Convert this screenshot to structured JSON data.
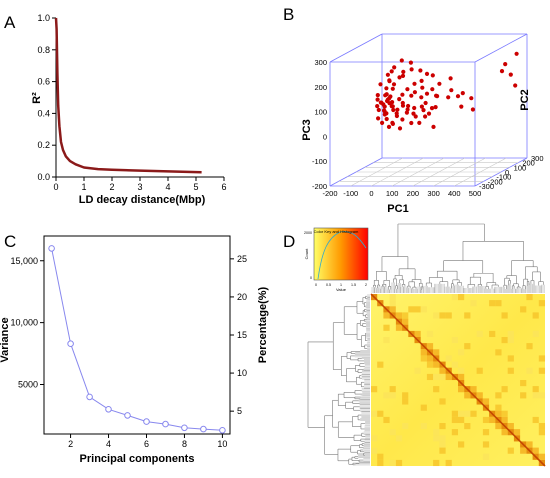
{
  "panels": {
    "a": "A",
    "b": "B",
    "c": "C",
    "d": "D"
  },
  "chart_data": [
    {
      "panel": "A",
      "type": "line",
      "xlabel": "LD decay distance(Mbp)",
      "ylabel": "R²",
      "xlim": [
        0,
        6
      ],
      "ylim": [
        0,
        1
      ],
      "xticks": [
        "0",
        "1",
        "2",
        "3",
        "4",
        "5",
        "6"
      ],
      "yticks": [
        "0.0",
        "0.2",
        "0.4",
        "0.6",
        "0.8",
        "1.0"
      ],
      "grid": false,
      "series": [
        {
          "color": "#8b1a1a",
          "x": [
            0.0,
            0.02,
            0.05,
            0.08,
            0.12,
            0.18,
            0.25,
            0.35,
            0.5,
            0.7,
            1.0,
            1.5,
            2.0,
            3.0,
            4.0,
            5.2
          ],
          "y": [
            1.0,
            0.93,
            0.65,
            0.45,
            0.32,
            0.22,
            0.17,
            0.13,
            0.1,
            0.08,
            0.06,
            0.05,
            0.045,
            0.04,
            0.035,
            0.03
          ]
        }
      ]
    },
    {
      "panel": "B",
      "type": "scatter",
      "xlabel": "PC1",
      "ylabel": "PC3",
      "zlabel": "PC2",
      "xlim": [
        -200,
        500
      ],
      "ylim": [
        -200,
        300
      ],
      "zlim": [
        -300,
        300
      ],
      "xticks": [
        "-200",
        "-100",
        "0",
        "100",
        "200",
        "300",
        "400",
        "500"
      ],
      "yticks": [
        "-200",
        "-100",
        "0",
        "100",
        "200",
        "300"
      ],
      "zticks": [
        "-300",
        "-200",
        "-100",
        "0",
        "100",
        "200",
        "300"
      ],
      "point_color": "#cc0000",
      "points": [
        [
          -80,
          80,
          0
        ],
        [
          -70,
          60,
          20
        ],
        [
          -60,
          50,
          -10
        ],
        [
          -75,
          40,
          30
        ],
        [
          -65,
          30,
          10
        ],
        [
          -85,
          20,
          -20
        ],
        [
          -55,
          70,
          40
        ],
        [
          -50,
          90,
          10
        ],
        [
          -90,
          50,
          0
        ],
        [
          -60,
          10,
          20
        ],
        [
          -70,
          0,
          -10
        ],
        [
          -40,
          60,
          30
        ],
        [
          -45,
          40,
          -20
        ],
        [
          -80,
          100,
          50
        ],
        [
          -30,
          80,
          10
        ],
        [
          -60,
          110,
          20
        ],
        [
          -20,
          50,
          0
        ],
        [
          -10,
          70,
          -30
        ],
        [
          0,
          90,
          20
        ],
        [
          10,
          60,
          40
        ],
        [
          20,
          110,
          10
        ],
        [
          -35,
          130,
          30
        ],
        [
          -25,
          150,
          20
        ],
        [
          -15,
          170,
          60
        ],
        [
          30,
          80,
          -10
        ],
        [
          40,
          130,
          20
        ],
        [
          50,
          100,
          40
        ],
        [
          60,
          70,
          -20
        ],
        [
          70,
          150,
          30
        ],
        [
          80,
          120,
          10
        ],
        [
          90,
          90,
          60
        ],
        [
          100,
          160,
          40
        ],
        [
          110,
          60,
          20
        ],
        [
          120,
          140,
          0
        ],
        [
          130,
          110,
          30
        ],
        [
          140,
          80,
          -10
        ],
        [
          150,
          180,
          50
        ],
        [
          160,
          130,
          20
        ],
        [
          170,
          100,
          40
        ],
        [
          180,
          60,
          10
        ],
        [
          190,
          150,
          30
        ],
        [
          200,
          110,
          -20
        ],
        [
          220,
          90,
          60
        ],
        [
          240,
          170,
          40
        ],
        [
          260,
          130,
          0
        ],
        [
          280,
          100,
          30
        ],
        [
          300,
          60,
          20
        ],
        [
          320,
          120,
          -10
        ],
        [
          340,
          90,
          40
        ],
        [
          360,
          50,
          10
        ],
        [
          -40,
          200,
          30
        ],
        [
          -20,
          220,
          10
        ],
        [
          0,
          240,
          50
        ],
        [
          20,
          200,
          20
        ],
        [
          40,
          230,
          60
        ],
        [
          10,
          180,
          40
        ],
        [
          60,
          210,
          20
        ],
        [
          -50,
          190,
          10
        ],
        [
          -30,
          170,
          -20
        ],
        [
          90,
          200,
          50
        ],
        [
          130,
          190,
          30
        ],
        [
          -70,
          130,
          40
        ],
        [
          -90,
          150,
          20
        ],
        [
          -100,
          90,
          10
        ],
        [
          -110,
          60,
          30
        ],
        [
          -95,
          110,
          0
        ],
        [
          -60,
          160,
          50
        ],
        [
          -45,
          -20,
          10
        ],
        [
          -30,
          -10,
          20
        ],
        [
          -20,
          0,
          -10
        ],
        [
          0,
          -30,
          30
        ],
        [
          20,
          10,
          10
        ],
        [
          50,
          -10,
          40
        ],
        [
          80,
          20,
          20
        ],
        [
          110,
          0,
          -10
        ],
        [
          140,
          30,
          30
        ],
        [
          170,
          -20,
          10
        ],
        [
          -75,
          75,
          60
        ],
        [
          -65,
          85,
          -30
        ],
        [
          -55,
          95,
          50
        ],
        [
          -85,
          65,
          40
        ],
        [
          -35,
          100,
          -10
        ],
        [
          -25,
          40,
          60
        ],
        [
          -15,
          20,
          30
        ],
        [
          5,
          40,
          -20
        ],
        [
          25,
          30,
          50
        ],
        [
          45,
          50,
          10
        ],
        [
          65,
          30,
          30
        ],
        [
          85,
          60,
          -10
        ],
        [
          105,
          40,
          50
        ],
        [
          125,
          20,
          20
        ],
        [
          150,
          50,
          40
        ],
        [
          400,
          160,
          250
        ],
        [
          430,
          140,
          280
        ],
        [
          420,
          190,
          240
        ],
        [
          450,
          220,
          300
        ],
        [
          460,
          100,
          260
        ]
      ]
    },
    {
      "panel": "C",
      "type": "line",
      "xlabel": "Principal components",
      "ylabel": "Variance",
      "y2label": "Percentage(%)",
      "xlim": [
        0.6,
        10.4
      ],
      "ylim": [
        1000,
        17000
      ],
      "y2lim": [
        2,
        28
      ],
      "xticks": [
        "2",
        "4",
        "6",
        "8",
        "10"
      ],
      "yticks": [
        "5000",
        "10,000",
        "15,000"
      ],
      "y2ticks": [
        "5",
        "10",
        "15",
        "20",
        "25"
      ],
      "grid": false,
      "series": [
        {
          "color": "#8888ee",
          "x": [
            1,
            2,
            3,
            4,
            5,
            6,
            7,
            8,
            9,
            10
          ],
          "y": [
            16000,
            8300,
            4000,
            3000,
            2500,
            2000,
            1800,
            1500,
            1400,
            1300
          ]
        }
      ]
    },
    {
      "panel": "D",
      "type": "heatmap",
      "color_key_title": "Color Key and Histogram",
      "color_key_xlabel": "Value",
      "color_key_ylabel": "Count",
      "color_key_xticks": [
        "0",
        "0.5",
        "1",
        "1.5",
        "2"
      ],
      "color_key_yticks": [
        "0",
        "2000"
      ],
      "colors": [
        "#ffff66",
        "#ff9900",
        "#ff0000"
      ]
    }
  ]
}
